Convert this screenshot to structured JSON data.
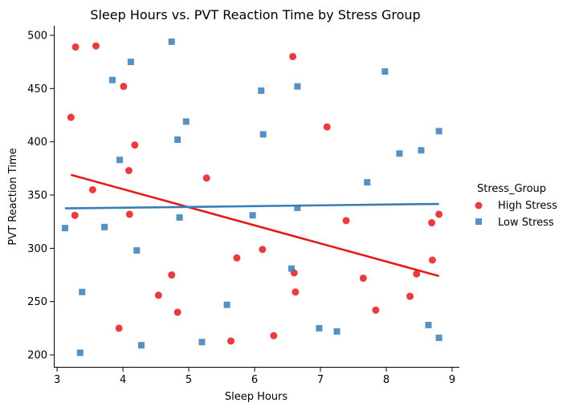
{
  "chart_data": {
    "type": "scatter",
    "title": "Sleep Hours vs. PVT Reaction Time by Stress Group",
    "xlabel": "Sleep Hours",
    "ylabel": "PVT Reaction Time",
    "xlim": [
      2.95,
      9.11
    ],
    "ylim": [
      188,
      509
    ],
    "xticks": [
      "3",
      "4",
      "5",
      "6",
      "7",
      "8",
      "9"
    ],
    "yticks": [
      "200",
      "250",
      "300",
      "350",
      "400",
      "450",
      "500"
    ],
    "grid": false,
    "legend": {
      "title": "Stress_Group",
      "placement": "right"
    },
    "series": [
      {
        "name": "High Stress",
        "color": "#e41a1c",
        "marker": "circle",
        "x": [
          3.28,
          3.59,
          3.21,
          4.01,
          4.18,
          4.09,
          3.54,
          3.27,
          4.1,
          5.27,
          6.58,
          7.1,
          7.39,
          6.12,
          5.73,
          6.6,
          6.62,
          7.65,
          8.8,
          8.69,
          8.7,
          8.46,
          8.36,
          7.84,
          4.74,
          4.54,
          4.83,
          3.94,
          5.64,
          6.29
        ],
        "y": [
          489,
          490,
          423,
          452,
          397,
          373,
          355,
          331,
          332,
          366,
          480,
          414,
          326,
          299,
          291,
          277,
          259,
          272,
          332,
          324,
          289,
          276,
          255,
          242,
          275,
          256,
          240,
          225,
          213,
          218
        ]
      },
      {
        "name": "Low Stress",
        "color": "#377eb8",
        "marker": "square",
        "x": [
          4.74,
          4.12,
          3.84,
          6.65,
          6.1,
          7.98,
          4.96,
          4.83,
          6.13,
          8.8,
          8.2,
          8.53,
          3.95,
          7.71,
          3.12,
          3.72,
          4.86,
          5.97,
          6.65,
          4.21,
          6.56,
          3.38,
          5.58,
          3.35,
          4.28,
          5.2,
          6.98,
          7.25,
          8.64,
          8.8
        ],
        "y": [
          494,
          475,
          458,
          452,
          448,
          466,
          419,
          402,
          407,
          410,
          389,
          392,
          383,
          362,
          319,
          320,
          329,
          331,
          338,
          298,
          281,
          259,
          247,
          202,
          209,
          212,
          225,
          222,
          228,
          216
        ]
      }
    ],
    "fit_lines": [
      {
        "series": "High Stress",
        "color": "#e41a1c",
        "x": [
          3.21,
          8.8
        ],
        "y": [
          369,
          274
        ]
      },
      {
        "series": "Low Stress",
        "color": "#377eb8",
        "x": [
          3.12,
          8.8
        ],
        "y": [
          337.5,
          341.7
        ]
      }
    ]
  }
}
